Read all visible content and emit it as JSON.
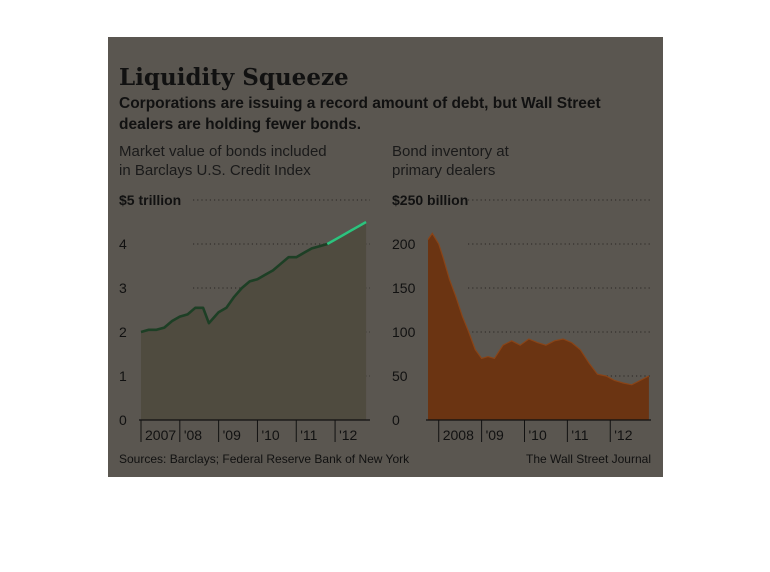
{
  "title": "Liquidity Squeeze",
  "subtitle_lines": [
    "Corporations are issuing a record amount of debt, but Wall Street",
    "dealers are holding fewer bonds."
  ],
  "source": "Sources: Barclays; Federal Reserve Bank of New York",
  "credit": "The Wall Street Journal",
  "colors": {
    "background": "#5a5650",
    "left_line": "#1d3f25",
    "left_line_recent": "#2ec27e",
    "left_fill": "#4f4b3f",
    "right_fill": "#6b3412",
    "right_fill_top": "#8a4417"
  },
  "chart_data": [
    {
      "type": "area",
      "label_lines": [
        "Market value of bonds included",
        "in Barclays U.S. Credit Index"
      ],
      "y_unit_label": "$5 trillion",
      "ylim": [
        0,
        5
      ],
      "yticks": [
        0,
        1,
        2,
        3,
        4,
        5
      ],
      "ytick_labels": [
        "0",
        "1",
        "2",
        "3",
        "4",
        "$5 trillion"
      ],
      "xlim": [
        2007.0,
        2012.9
      ],
      "xticks": [
        2007,
        2008,
        2009,
        2010,
        2011,
        2012
      ],
      "xtick_labels": [
        "2007",
        "'08",
        "'09",
        "'10",
        "'11",
        "'12"
      ],
      "grid": true,
      "series": [
        {
          "x": [
            2007.0,
            2007.2,
            2007.4,
            2007.6,
            2007.8,
            2008.0,
            2008.2,
            2008.4,
            2008.6,
            2008.75,
            2008.9,
            2009.0,
            2009.2,
            2009.4,
            2009.6,
            2009.8,
            2010.0,
            2010.2,
            2010.4,
            2010.6,
            2010.8,
            2011.0,
            2011.2,
            2011.4,
            2011.6,
            2011.8,
            2012.0,
            2012.2,
            2012.4,
            2012.6,
            2012.8
          ],
          "y": [
            2.0,
            2.05,
            2.05,
            2.1,
            2.25,
            2.35,
            2.4,
            2.55,
            2.55,
            2.2,
            2.35,
            2.45,
            2.55,
            2.8,
            3.0,
            3.15,
            3.2,
            3.3,
            3.4,
            3.55,
            3.7,
            3.7,
            3.8,
            3.9,
            3.95,
            4.0,
            4.1,
            4.2,
            4.3,
            4.4,
            4.5
          ]
        }
      ],
      "highlight_from_x": 2011.7
    },
    {
      "type": "area",
      "label_lines": [
        "Bond inventory at",
        "primary dealers"
      ],
      "y_unit_label": "$250 billion",
      "ylim": [
        0,
        250
      ],
      "yticks": [
        0,
        50,
        100,
        150,
        200,
        250
      ],
      "ytick_labels": [
        "0",
        "50",
        "100",
        "150",
        "200",
        "$250 billion"
      ],
      "xlim": [
        2007.75,
        2012.95
      ],
      "xticks": [
        2008,
        2009,
        2010,
        2011,
        2012
      ],
      "xtick_labels": [
        "2008",
        "'09",
        "'10",
        "'11",
        "'12"
      ],
      "grid": true,
      "series": [
        {
          "x": [
            2007.75,
            2007.85,
            2008.0,
            2008.1,
            2008.25,
            2008.4,
            2008.55,
            2008.7,
            2008.85,
            2009.0,
            2009.15,
            2009.3,
            2009.5,
            2009.7,
            2009.9,
            2010.1,
            2010.3,
            2010.5,
            2010.7,
            2010.9,
            2011.1,
            2011.3,
            2011.5,
            2011.7,
            2011.9,
            2012.1,
            2012.3,
            2012.5,
            2012.7,
            2012.9
          ],
          "y": [
            205,
            212,
            200,
            185,
            160,
            140,
            118,
            100,
            80,
            70,
            72,
            70,
            85,
            90,
            85,
            92,
            88,
            85,
            90,
            92,
            88,
            80,
            65,
            52,
            50,
            45,
            42,
            40,
            45,
            50
          ]
        }
      ]
    }
  ]
}
